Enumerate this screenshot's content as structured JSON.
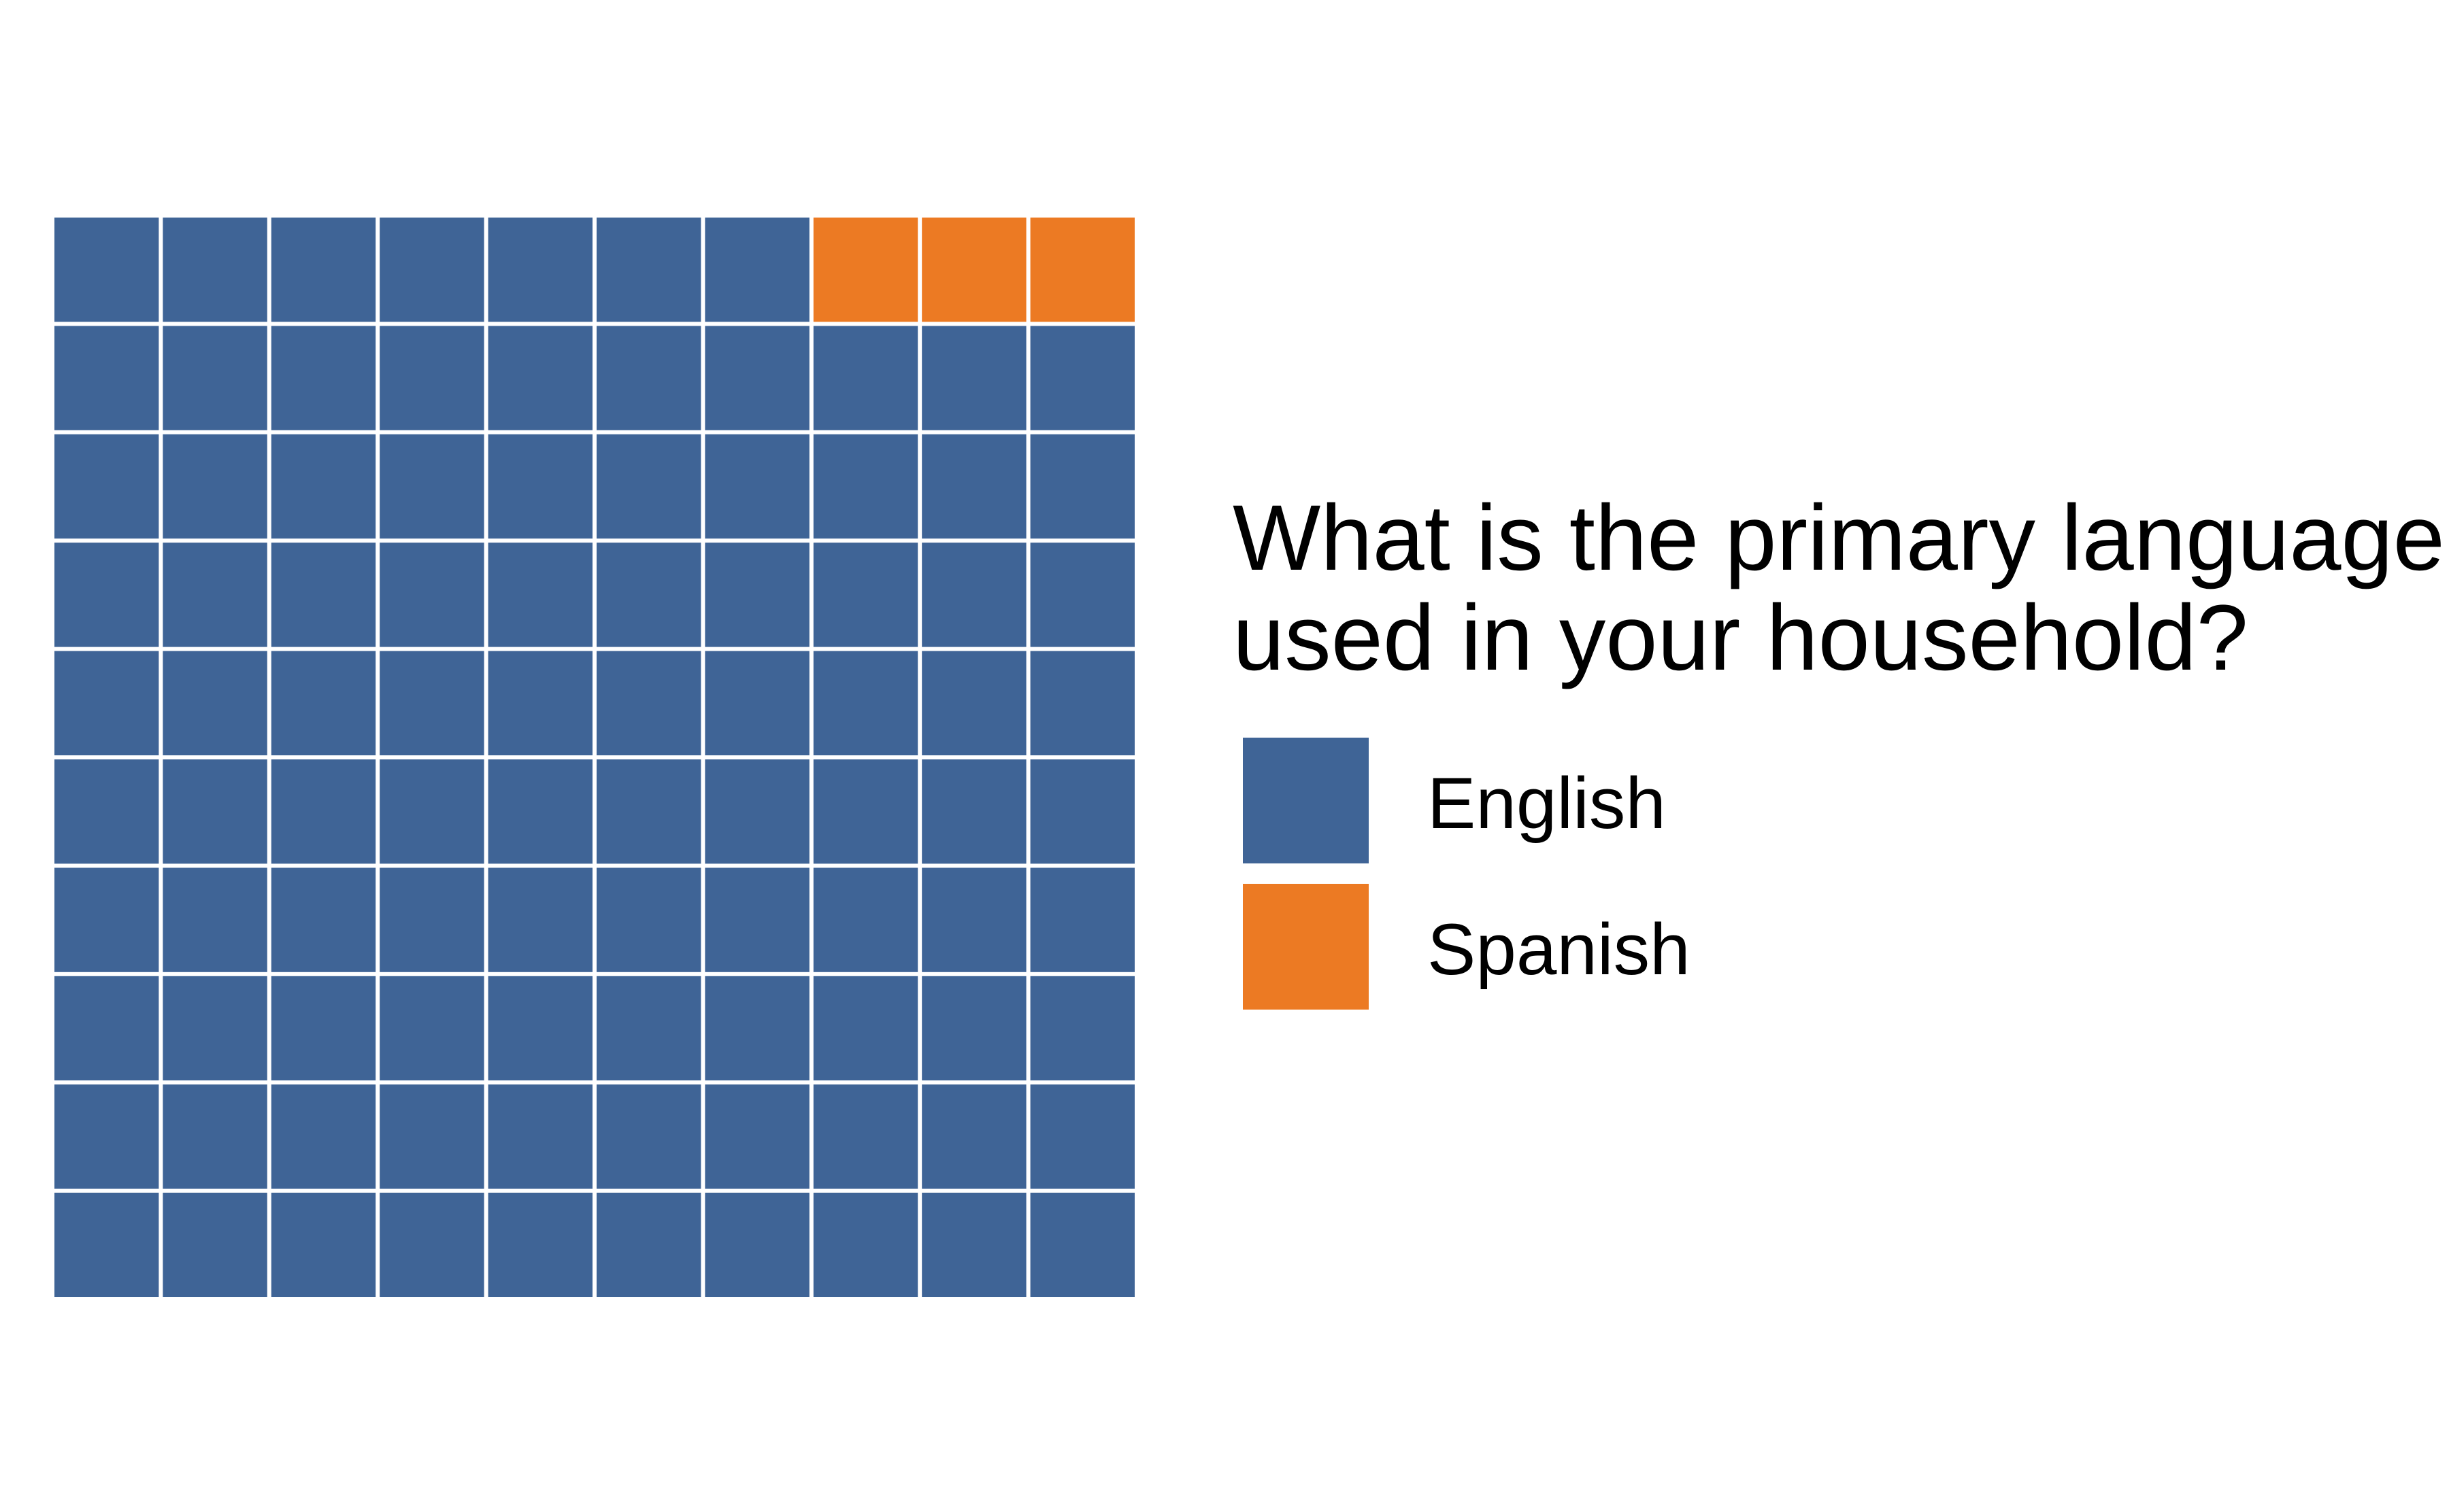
{
  "chart_data": {
    "type": "waffle",
    "grid": {
      "rows": 10,
      "cols": 10
    },
    "fill_order": "row-major from bottom-left",
    "categories": [
      "English",
      "Spanish"
    ],
    "values": [
      97,
      3
    ],
    "colors": [
      "#3f6496",
      "#ec7a23"
    ],
    "legend": {
      "title_lines": [
        "What is the primary language",
        "used in your household?"
      ],
      "placement": "right"
    }
  }
}
